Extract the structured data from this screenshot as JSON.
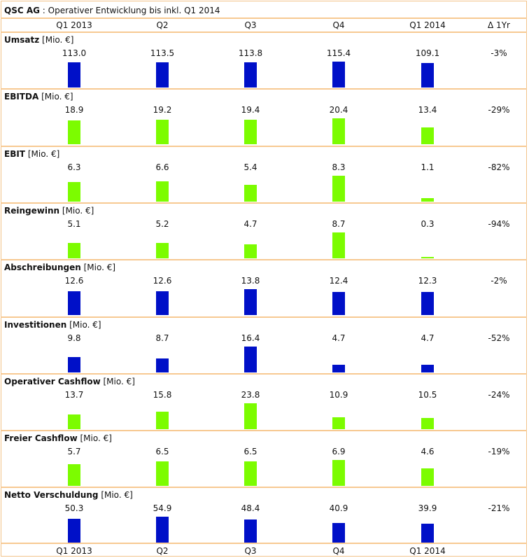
{
  "header": {
    "company": "QSC AG",
    "separator": " : ",
    "subtitle": "Operativer Entwicklung bis inkl. Q1 2014"
  },
  "columns": [
    "Q1 2013",
    "Q2",
    "Q3",
    "Q4",
    "Q1 2014"
  ],
  "delta_header": "Δ 1Yr",
  "colors": {
    "blue": "#0010c8",
    "green": "#7cfc00",
    "border": "#f7c992"
  },
  "chart_data": {
    "type": "bar",
    "title": "QSC AG : Operativer Entwicklung bis inkl. Q1 2014",
    "categories": [
      "Q1 2013",
      "Q2",
      "Q3",
      "Q4",
      "Q1 2014"
    ],
    "series": [
      {
        "name": "Umsatz",
        "unit": "[Mio. €]",
        "values": [
          113.0,
          113.5,
          113.8,
          115.4,
          109.1
        ],
        "labels": [
          "113.0",
          "113.5",
          "113.8",
          "115.4",
          "109.1"
        ],
        "delta": "-3%",
        "color": "blue"
      },
      {
        "name": "EBITDA",
        "unit": "[Mio. €]",
        "values": [
          18.9,
          19.2,
          19.4,
          20.4,
          13.4
        ],
        "labels": [
          "18.9",
          "19.2",
          "19.4",
          "20.4",
          "13.4"
        ],
        "delta": "-29%",
        "color": "green"
      },
      {
        "name": "EBIT",
        "unit": "[Mio. €]",
        "values": [
          6.3,
          6.6,
          5.4,
          8.3,
          1.1
        ],
        "labels": [
          "6.3",
          "6.6",
          "5.4",
          "8.3",
          "1.1"
        ],
        "delta": "-82%",
        "color": "green"
      },
      {
        "name": "Reingewinn",
        "unit": "[Mio. €]",
        "values": [
          5.1,
          5.2,
          4.7,
          8.7,
          0.3
        ],
        "labels": [
          "5.1",
          "5.2",
          "4.7",
          "8.7",
          "0.3"
        ],
        "delta": "-94%",
        "color": "green"
      },
      {
        "name": "Abschreibungen",
        "unit": "[Mio. €]",
        "values": [
          12.6,
          12.6,
          13.8,
          12.4,
          12.3
        ],
        "labels": [
          "12.6",
          "12.6",
          "13.8",
          "12.4",
          "12.3"
        ],
        "delta": "-2%",
        "color": "blue"
      },
      {
        "name": "Investitionen",
        "unit": "[Mio. €]",
        "values": [
          9.8,
          8.7,
          16.4,
          4.7,
          4.7
        ],
        "labels": [
          "9.8",
          "8.7",
          "16.4",
          "4.7",
          "4.7"
        ],
        "delta": "-52%",
        "color": "blue"
      },
      {
        "name": "Operativer Cashflow",
        "unit": "[Mio. €]",
        "values": [
          13.7,
          15.8,
          23.8,
          10.9,
          10.5
        ],
        "labels": [
          "13.7",
          "15.8",
          "23.8",
          "10.9",
          "10.5"
        ],
        "delta": "-24%",
        "color": "green"
      },
      {
        "name": "Freier Cashflow",
        "unit": "[Mio. €]",
        "values": [
          5.7,
          6.5,
          6.5,
          6.9,
          4.6
        ],
        "labels": [
          "5.7",
          "6.5",
          "6.5",
          "6.9",
          "4.6"
        ],
        "delta": "-19%",
        "color": "green"
      },
      {
        "name": "Netto Verschuldung",
        "unit": "[Mio. €]",
        "values": [
          50.3,
          54.9,
          48.4,
          40.9,
          39.9
        ],
        "labels": [
          "50.3",
          "54.9",
          "48.4",
          "40.9",
          "39.9"
        ],
        "delta": "-21%",
        "color": "blue"
      }
    ]
  }
}
